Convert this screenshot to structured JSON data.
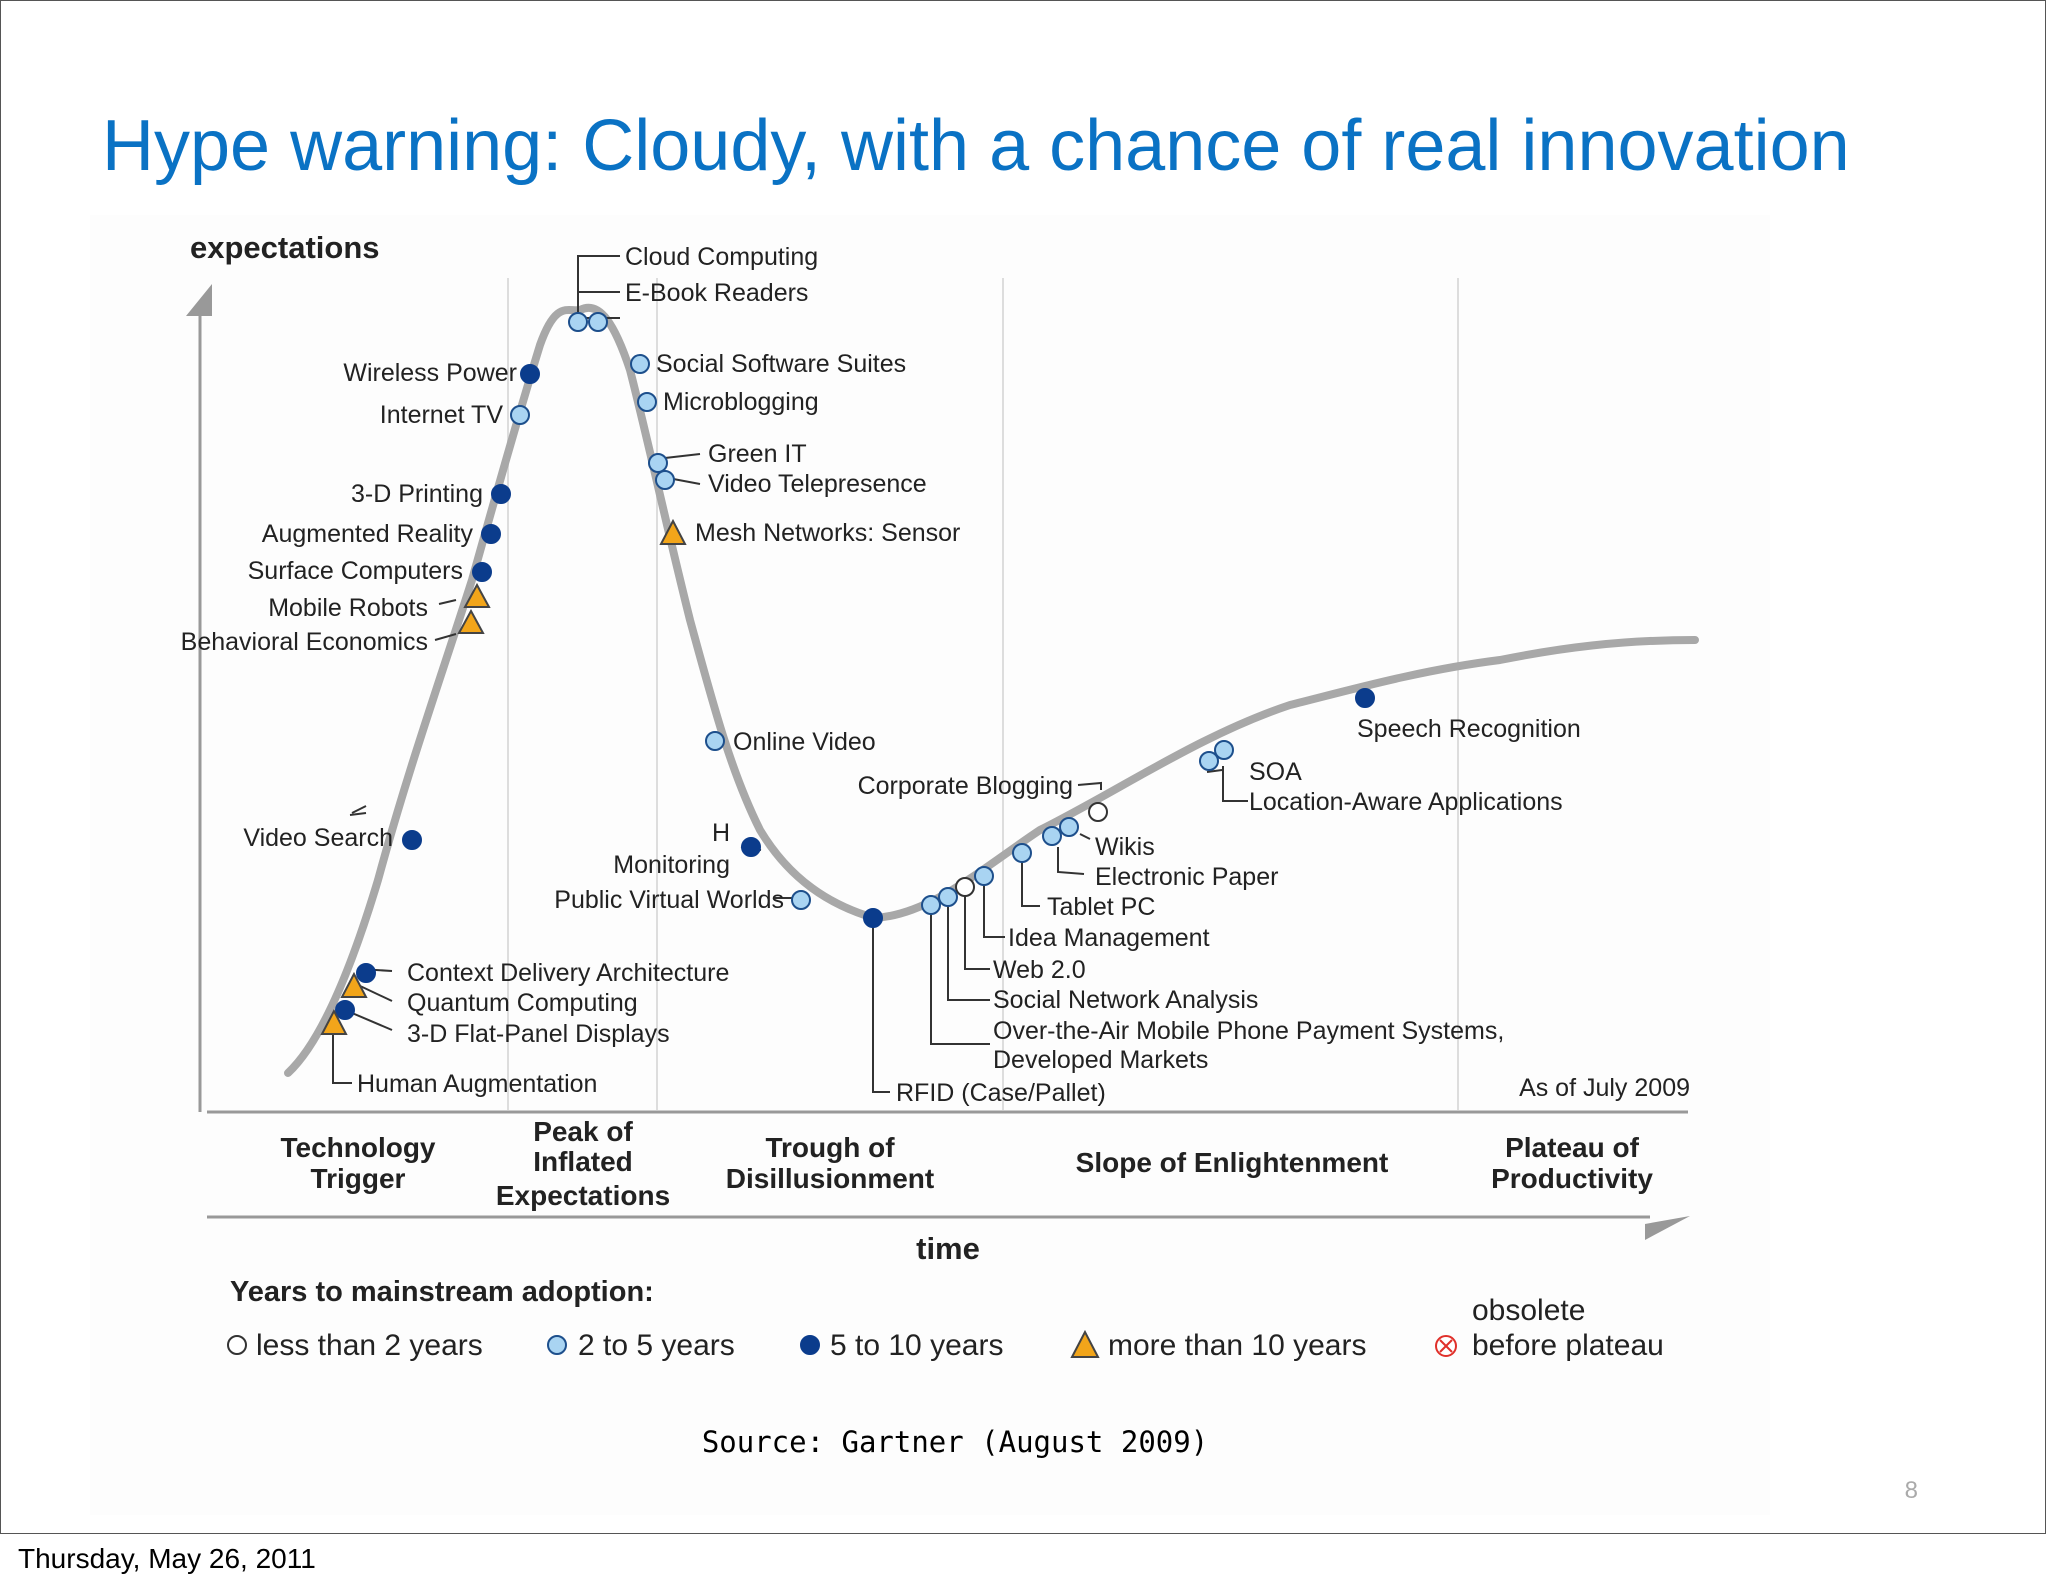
{
  "slide": {
    "title": "Hype warning: Cloudy, with a chance of real innovation",
    "source": "Source: Gartner (August 2009)",
    "page_number": "8",
    "footer_date": "Thursday, May 26, 2011"
  },
  "diagram": {
    "y_axis_label": "expectations",
    "x_axis_label": "time",
    "as_of": "As of July 2009",
    "phases": [
      {
        "lines": [
          "Technology",
          "Trigger"
        ]
      },
      {
        "lines": [
          "Peak of",
          "Inflated",
          "Expectations"
        ]
      },
      {
        "lines": [
          "Trough of",
          "Disillusionment"
        ]
      },
      {
        "lines": [
          "Slope of Enlightenment"
        ]
      },
      {
        "lines": [
          "Plateau of",
          "Productivity"
        ]
      }
    ],
    "technologies": [
      {
        "name": "Cloud Computing",
        "category": "2 to 5 years"
      },
      {
        "name": "E-Book Readers",
        "category": "2 to 5 years"
      },
      {
        "name": "Social Software Suites",
        "category": "2 to 5 years"
      },
      {
        "name": "Microblogging",
        "category": "2 to 5 years"
      },
      {
        "name": "Green IT",
        "category": "2 to 5 years"
      },
      {
        "name": "Video Telepresence",
        "category": "2 to 5 years"
      },
      {
        "name": "Mesh Networks: Sensor",
        "category": "more than 10 years"
      },
      {
        "name": "Wireless Power",
        "category": "5 to 10 years"
      },
      {
        "name": "Internet TV",
        "category": "2 to 5 years"
      },
      {
        "name": "3-D Printing",
        "category": "5 to 10 years"
      },
      {
        "name": "Augmented Reality",
        "category": "5 to 10 years"
      },
      {
        "name": "Surface Computers",
        "category": "5 to 10 years"
      },
      {
        "name": "Mobile Robots",
        "category": "more than 10 years"
      },
      {
        "name": "Behavioral Economics",
        "category": "more than 10 years"
      },
      {
        "name": "Video Search",
        "category": "5 to 10 years"
      },
      {
        "name": "Context Delivery Architecture",
        "category": "5 to 10 years"
      },
      {
        "name": "Quantum Computing",
        "category": "more than 10 years"
      },
      {
        "name": "3-D Flat-Panel Displays",
        "category": "5 to 10 years"
      },
      {
        "name": "Human Augmentation",
        "category": "more than 10 years"
      },
      {
        "name": "Online Video",
        "category": "2 to 5 years"
      },
      {
        "name": "Home Health Monitoring",
        "category": "5 to 10 years"
      },
      {
        "name": "Public Virtual Worlds",
        "category": "2 to 5 years"
      },
      {
        "name": "RFID (Case/Pallet)",
        "category": "5 to 10 years"
      },
      {
        "name": "Corporate Blogging",
        "category": "less than 2 years"
      },
      {
        "name": "Wikis",
        "category": "2 to 5 years"
      },
      {
        "name": "Electronic Paper",
        "category": "2 to 5 years"
      },
      {
        "name": "Tablet PC",
        "category": "2 to 5 years"
      },
      {
        "name": "Idea Management",
        "category": "2 to 5 years"
      },
      {
        "name": "Web 2.0",
        "category": "less than 2 years"
      },
      {
        "name": "Social Network Analysis",
        "category": "2 to 5 years"
      },
      {
        "name": "Over-the-Air Mobile Phone Payment Systems,",
        "category": "2 to 5 years"
      },
      {
        "name": "Developed Markets",
        "category": "2 to 5 years"
      },
      {
        "name": "SOA",
        "category": "2 to 5 years"
      },
      {
        "name": "Location-Aware Applications",
        "category": "2 to 5 years"
      },
      {
        "name": "Speech Recognition",
        "category": "5 to 10 years"
      }
    ],
    "legend": {
      "title": "Years to mainstream adoption:",
      "items": [
        {
          "label": "less than 2 years",
          "marker": "open-circle",
          "color": "#ffffff"
        },
        {
          "label": "2 to 5 years",
          "marker": "circle",
          "color": "#a9d4f2"
        },
        {
          "label": "5 to 10 years",
          "marker": "circle",
          "color": "#0b3c8c"
        },
        {
          "label": "more than 10 years",
          "marker": "triangle",
          "color": "#f2a51a"
        },
        {
          "label": "obsolete",
          "marker": "crossed-circle",
          "color": "#e0302a"
        },
        {
          "label": "before plateau",
          "marker": "none",
          "color": ""
        }
      ]
    },
    "colors": {
      "curve": "#a8a8a8",
      "axis": "#999999",
      "gridline": "#dddddd",
      "title": "#0a72c4"
    }
  }
}
